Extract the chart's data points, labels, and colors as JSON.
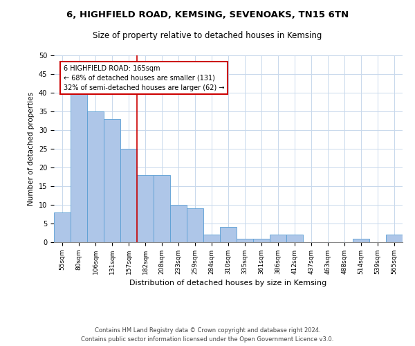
{
  "title1": "6, HIGHFIELD ROAD, KEMSING, SEVENOAKS, TN15 6TN",
  "title2": "Size of property relative to detached houses in Kemsing",
  "xlabel": "Distribution of detached houses by size in Kemsing",
  "ylabel": "Number of detached properties",
  "categories": [
    "55sqm",
    "80sqm",
    "106sqm",
    "131sqm",
    "157sqm",
    "182sqm",
    "208sqm",
    "233sqm",
    "259sqm",
    "284sqm",
    "310sqm",
    "335sqm",
    "361sqm",
    "386sqm",
    "412sqm",
    "437sqm",
    "463sqm",
    "488sqm",
    "514sqm",
    "539sqm",
    "565sqm"
  ],
  "values": [
    8,
    40,
    35,
    33,
    25,
    18,
    18,
    10,
    9,
    2,
    4,
    1,
    1,
    2,
    2,
    0,
    0,
    0,
    1,
    0,
    2
  ],
  "bar_color": "#aec6e8",
  "bar_edgecolor": "#5a9fd4",
  "vline_x": 4.5,
  "vline_color": "#cc0000",
  "annotation_text": "6 HIGHFIELD ROAD: 165sqm\n← 68% of detached houses are smaller (131)\n32% of semi-detached houses are larger (62) →",
  "annotation_box_color": "#ffffff",
  "annotation_box_edgecolor": "#cc0000",
  "ylim": [
    0,
    50
  ],
  "yticks": [
    0,
    5,
    10,
    15,
    20,
    25,
    30,
    35,
    40,
    45,
    50
  ],
  "footer1": "Contains HM Land Registry data © Crown copyright and database right 2024.",
  "footer2": "Contains public sector information licensed under the Open Government Licence v3.0.",
  "background_color": "#ffffff",
  "grid_color": "#c8d8ec"
}
